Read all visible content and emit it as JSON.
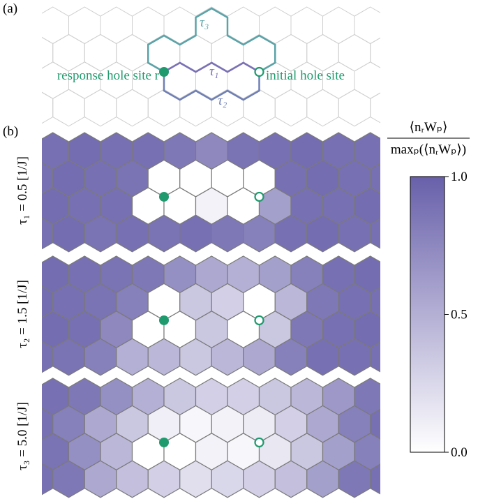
{
  "figure": {
    "panel_labels": [
      "(a)",
      "(b)"
    ],
    "diagram": {
      "response_label": "response hole site r",
      "initial_label": "initial hole site",
      "tau1": "τ₁",
      "tau2": "τ₂",
      "tau3": "τ₃"
    }
  },
  "chart_data": {
    "type": "hexmap",
    "colorbar_label": {
      "numerator": "⟨nᵣWₚ⟩",
      "denominator": "maxₚ(⟨nᵣWₚ⟩)"
    },
    "clim": [
      0,
      1
    ],
    "cticks": [
      {
        "value": 0,
        "label": "0.0"
      },
      {
        "value": 0.5,
        "label": "0.5"
      },
      {
        "value": 1,
        "label": "1.0"
      }
    ],
    "cmap": [
      "#ffffff",
      "#6860aa"
    ],
    "panels": [
      {
        "label": "τ₁ = 0.5 [1/J]",
        "values": [
          [
            0.9,
            0.92,
            0.9,
            0.9,
            0.85,
            0.75,
            0.88,
            0.9,
            0.92,
            0.9,
            0.9
          ],
          [
            0.9,
            0.92,
            0.9,
            0.88,
            0,
            0,
            0,
            0,
            0.9,
            0.92,
            0.9,
            0.9
          ],
          [
            0.92,
            0.9,
            0.9,
            0,
            0,
            0.08,
            0,
            0.6,
            0.9,
            0.9,
            0.92
          ],
          [
            0.9,
            0.92,
            0.88,
            0.9,
            0.88,
            0.9,
            0.85,
            0.8,
            0.9,
            0.92,
            0.9,
            0.9
          ]
        ]
      },
      {
        "label": "τ₂ = 1.5 [1/J]",
        "values": [
          [
            0.92,
            0.9,
            0.88,
            0.85,
            0.7,
            0.55,
            0.5,
            0.6,
            0.8,
            0.9,
            0.92
          ],
          [
            0.92,
            0.9,
            0.88,
            0.8,
            0,
            0.35,
            0.3,
            0,
            0.45,
            0.85,
            0.9,
            0.9
          ],
          [
            0.92,
            0.9,
            0.75,
            0,
            0,
            0.35,
            0,
            0.35,
            0.85,
            0.9,
            0.92
          ],
          [
            0.9,
            0.88,
            0.8,
            0.5,
            0.45,
            0.35,
            0.45,
            0.55,
            0.8,
            0.9,
            0.9,
            0.9
          ]
        ]
      },
      {
        "label": "τ₃ = 5.0 [1/J]",
        "values": [
          [
            0.9,
            0.85,
            0.7,
            0.5,
            0.35,
            0.3,
            0.3,
            0.35,
            0.45,
            0.65,
            0.85
          ],
          [
            0.9,
            0.8,
            0.55,
            0.35,
            0.1,
            0.05,
            0.08,
            0.12,
            0.3,
            0.55,
            0.8,
            0.9
          ],
          [
            0.88,
            0.7,
            0.45,
            0,
            0,
            0.08,
            0.05,
            0.15,
            0.35,
            0.6,
            0.8
          ],
          [
            0.9,
            0.85,
            0.55,
            0.4,
            0.3,
            0.2,
            0.25,
            0.3,
            0.4,
            0.6,
            0.85,
            0.9
          ]
        ]
      }
    ]
  }
}
